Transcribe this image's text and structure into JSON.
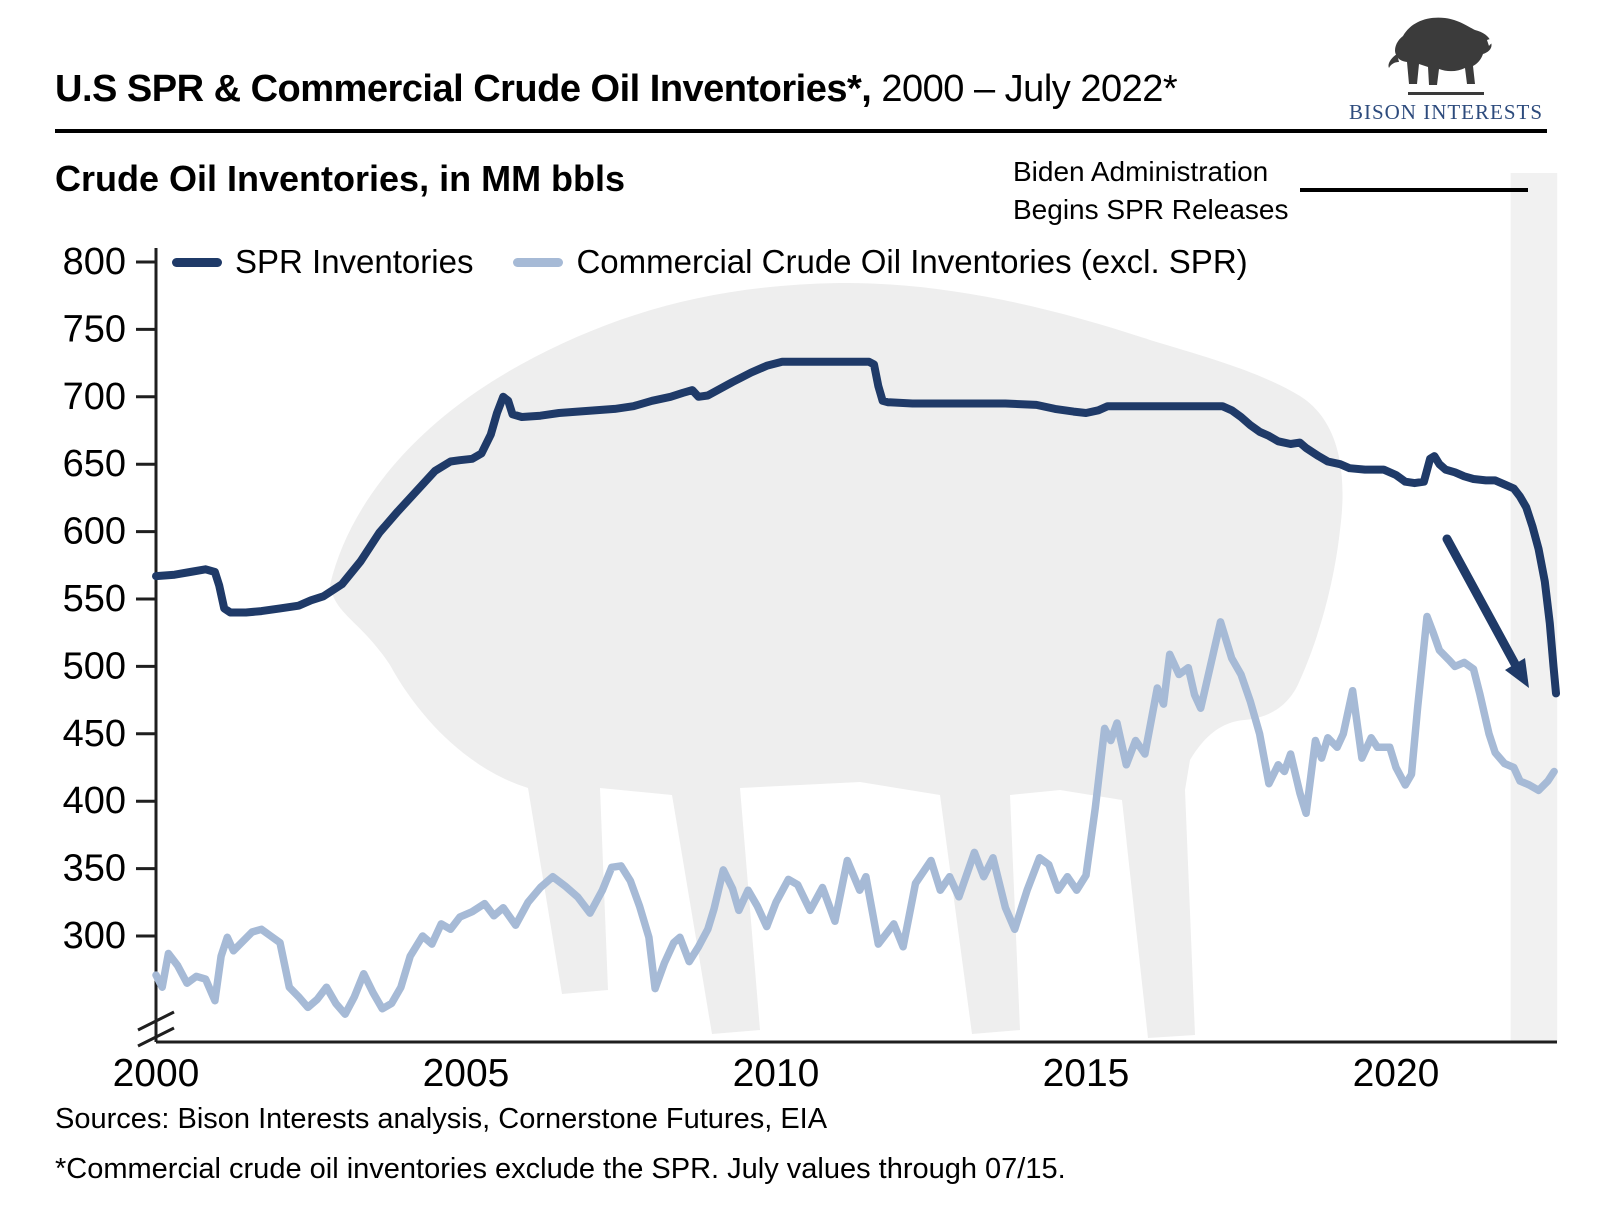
{
  "header": {
    "title_bold": "U.S SPR & Commercial Crude Oil Inventories*,",
    "title_regular": " 2000 – July 2022*"
  },
  "logo": {
    "brand": "BISON INTERESTS"
  },
  "subtitle": "Crude Oil Inventories, in MM bbls",
  "annotation": {
    "line1": "Biden Administration",
    "line2": "Begins SPR Releases"
  },
  "legend": [
    {
      "label": "SPR Inventories",
      "color": "#1f3a68"
    },
    {
      "label": "Commercial Crude Oil Inventories (excl. SPR)",
      "color": "#a6bad6"
    }
  ],
  "footer": {
    "sources": "Sources: Bison Interests analysis, Cornerstone Futures, EIA",
    "footnote": "*Commercial crude oil inventories exclude the SPR. July values through 07/15."
  },
  "colors": {
    "spr_navy": "#1f3a68",
    "commercial_blue": "#a6bad6",
    "axis": "#1f1f1f",
    "highlight_band": "#f1f1f1",
    "watermark": "#eeeeee",
    "logo_text_navy": "#2d4b7d"
  },
  "chart_data": {
    "type": "line",
    "title": "Crude Oil Inventories, in MM bbls",
    "xlabel": "",
    "ylabel": "MM bbls",
    "x_range": [
      2000,
      2022.6
    ],
    "y_ticks": [
      800,
      750,
      700,
      650,
      600,
      550,
      500,
      450,
      400,
      350,
      300
    ],
    "x_ticks": [
      2000,
      2005,
      2010,
      2015,
      2020
    ],
    "y_axis_break": true,
    "grid": false,
    "legend_position": "top-left",
    "highlight_band": {
      "label": "Biden Administration Begins SPR Releases",
      "x_start": 2021.85,
      "x_end": 2022.6
    },
    "series": [
      {
        "name": "SPR Inventories",
        "color": "#1f3a68",
        "points": [
          [
            2000.0,
            567
          ],
          [
            2000.3,
            568
          ],
          [
            2000.55,
            570
          ],
          [
            2000.8,
            572
          ],
          [
            2000.95,
            570
          ],
          [
            2001.02,
            560
          ],
          [
            2001.1,
            543
          ],
          [
            2001.2,
            540
          ],
          [
            2001.45,
            540
          ],
          [
            2001.7,
            541
          ],
          [
            2002.0,
            543
          ],
          [
            2002.3,
            545
          ],
          [
            2002.5,
            549
          ],
          [
            2002.7,
            552
          ],
          [
            2003.0,
            561
          ],
          [
            2003.3,
            578
          ],
          [
            2003.6,
            599
          ],
          [
            2003.9,
            615
          ],
          [
            2004.2,
            630
          ],
          [
            2004.5,
            645
          ],
          [
            2004.75,
            652
          ],
          [
            2004.9,
            653
          ],
          [
            2005.1,
            654
          ],
          [
            2005.25,
            658
          ],
          [
            2005.4,
            672
          ],
          [
            2005.5,
            688
          ],
          [
            2005.6,
            700
          ],
          [
            2005.68,
            697
          ],
          [
            2005.75,
            687
          ],
          [
            2005.9,
            685
          ],
          [
            2006.2,
            686
          ],
          [
            2006.5,
            688
          ],
          [
            2006.8,
            689
          ],
          [
            2007.1,
            690
          ],
          [
            2007.4,
            691
          ],
          [
            2007.7,
            693
          ],
          [
            2008.0,
            697
          ],
          [
            2008.3,
            700
          ],
          [
            2008.5,
            703
          ],
          [
            2008.65,
            705
          ],
          [
            2008.75,
            700
          ],
          [
            2008.9,
            701
          ],
          [
            2009.1,
            706
          ],
          [
            2009.3,
            711
          ],
          [
            2009.6,
            718
          ],
          [
            2009.85,
            723
          ],
          [
            2010.1,
            726
          ],
          [
            2010.5,
            726
          ],
          [
            2011.0,
            726
          ],
          [
            2011.5,
            726
          ],
          [
            2011.58,
            724
          ],
          [
            2011.65,
            708
          ],
          [
            2011.72,
            697
          ],
          [
            2011.8,
            696
          ],
          [
            2012.2,
            695
          ],
          [
            2012.7,
            695
          ],
          [
            2013.2,
            695
          ],
          [
            2013.7,
            695
          ],
          [
            2014.2,
            694
          ],
          [
            2014.5,
            691
          ],
          [
            2014.8,
            689
          ],
          [
            2015.0,
            688
          ],
          [
            2015.2,
            690
          ],
          [
            2015.35,
            693
          ],
          [
            2015.8,
            693
          ],
          [
            2016.3,
            693
          ],
          [
            2016.8,
            693
          ],
          [
            2017.2,
            693
          ],
          [
            2017.35,
            690
          ],
          [
            2017.5,
            685
          ],
          [
            2017.65,
            679
          ],
          [
            2017.8,
            674
          ],
          [
            2017.95,
            671
          ],
          [
            2018.1,
            667
          ],
          [
            2018.3,
            665
          ],
          [
            2018.45,
            666
          ],
          [
            2018.55,
            662
          ],
          [
            2018.75,
            656
          ],
          [
            2018.9,
            652
          ],
          [
            2019.1,
            650
          ],
          [
            2019.25,
            647
          ],
          [
            2019.5,
            646
          ],
          [
            2019.8,
            646
          ],
          [
            2020.0,
            642
          ],
          [
            2020.15,
            637
          ],
          [
            2020.3,
            636
          ],
          [
            2020.45,
            637
          ],
          [
            2020.55,
            654
          ],
          [
            2020.62,
            656
          ],
          [
            2020.7,
            650
          ],
          [
            2020.8,
            646
          ],
          [
            2020.95,
            644
          ],
          [
            2021.1,
            641
          ],
          [
            2021.25,
            639
          ],
          [
            2021.45,
            638
          ],
          [
            2021.6,
            638
          ],
          [
            2021.75,
            635
          ],
          [
            2021.9,
            632
          ],
          [
            2022.0,
            626
          ],
          [
            2022.1,
            618
          ],
          [
            2022.2,
            604
          ],
          [
            2022.3,
            587
          ],
          [
            2022.4,
            563
          ],
          [
            2022.48,
            532
          ],
          [
            2022.54,
            500
          ],
          [
            2022.58,
            480
          ]
        ]
      },
      {
        "name": "Commercial Crude Oil Inventories (excl. SPR)",
        "color": "#a6bad6",
        "points": [
          [
            2000.0,
            271
          ],
          [
            2000.1,
            262
          ],
          [
            2000.2,
            287
          ],
          [
            2000.35,
            278
          ],
          [
            2000.5,
            265
          ],
          [
            2000.65,
            270
          ],
          [
            2000.8,
            268
          ],
          [
            2000.95,
            252
          ],
          [
            2001.05,
            285
          ],
          [
            2001.15,
            299
          ],
          [
            2001.25,
            289
          ],
          [
            2001.4,
            296
          ],
          [
            2001.55,
            303
          ],
          [
            2001.7,
            305
          ],
          [
            2001.85,
            300
          ],
          [
            2002.0,
            295
          ],
          [
            2002.15,
            262
          ],
          [
            2002.3,
            255
          ],
          [
            2002.45,
            247
          ],
          [
            2002.6,
            253
          ],
          [
            2002.75,
            262
          ],
          [
            2002.9,
            250
          ],
          [
            2003.05,
            242
          ],
          [
            2003.2,
            255
          ],
          [
            2003.35,
            272
          ],
          [
            2003.5,
            258
          ],
          [
            2003.65,
            246
          ],
          [
            2003.8,
            250
          ],
          [
            2003.95,
            262
          ],
          [
            2004.1,
            285
          ],
          [
            2004.3,
            300
          ],
          [
            2004.45,
            294
          ],
          [
            2004.6,
            309
          ],
          [
            2004.75,
            305
          ],
          [
            2004.9,
            314
          ],
          [
            2005.1,
            318
          ],
          [
            2005.3,
            324
          ],
          [
            2005.45,
            315
          ],
          [
            2005.6,
            321
          ],
          [
            2005.8,
            308
          ],
          [
            2006.0,
            325
          ],
          [
            2006.2,
            336
          ],
          [
            2006.4,
            344
          ],
          [
            2006.6,
            337
          ],
          [
            2006.8,
            329
          ],
          [
            2007.0,
            317
          ],
          [
            2007.2,
            334
          ],
          [
            2007.35,
            351
          ],
          [
            2007.5,
            352
          ],
          [
            2007.65,
            341
          ],
          [
            2007.8,
            322
          ],
          [
            2007.95,
            299
          ],
          [
            2008.05,
            261
          ],
          [
            2008.2,
            280
          ],
          [
            2008.35,
            295
          ],
          [
            2008.45,
            299
          ],
          [
            2008.6,
            281
          ],
          [
            2008.75,
            292
          ],
          [
            2008.9,
            305
          ],
          [
            2009.0,
            320
          ],
          [
            2009.15,
            349
          ],
          [
            2009.3,
            335
          ],
          [
            2009.4,
            319
          ],
          [
            2009.55,
            334
          ],
          [
            2009.7,
            322
          ],
          [
            2009.85,
            307
          ],
          [
            2010.0,
            325
          ],
          [
            2010.2,
            342
          ],
          [
            2010.35,
            338
          ],
          [
            2010.55,
            319
          ],
          [
            2010.75,
            336
          ],
          [
            2010.95,
            311
          ],
          [
            2011.15,
            356
          ],
          [
            2011.35,
            334
          ],
          [
            2011.45,
            344
          ],
          [
            2011.65,
            294
          ],
          [
            2011.9,
            309
          ],
          [
            2012.05,
            292
          ],
          [
            2012.25,
            339
          ],
          [
            2012.5,
            356
          ],
          [
            2012.65,
            334
          ],
          [
            2012.8,
            344
          ],
          [
            2012.95,
            329
          ],
          [
            2013.2,
            362
          ],
          [
            2013.35,
            344
          ],
          [
            2013.5,
            358
          ],
          [
            2013.7,
            321
          ],
          [
            2013.85,
            305
          ],
          [
            2014.05,
            334
          ],
          [
            2014.25,
            358
          ],
          [
            2014.4,
            353
          ],
          [
            2014.55,
            334
          ],
          [
            2014.7,
            344
          ],
          [
            2014.85,
            334
          ],
          [
            2015.0,
            345
          ],
          [
            2015.15,
            395
          ],
          [
            2015.3,
            454
          ],
          [
            2015.4,
            445
          ],
          [
            2015.5,
            458
          ],
          [
            2015.65,
            427
          ],
          [
            2015.8,
            445
          ],
          [
            2015.95,
            435
          ],
          [
            2016.15,
            484
          ],
          [
            2016.25,
            472
          ],
          [
            2016.35,
            509
          ],
          [
            2016.5,
            494
          ],
          [
            2016.65,
            499
          ],
          [
            2016.75,
            479
          ],
          [
            2016.85,
            469
          ],
          [
            2017.0,
            499
          ],
          [
            2017.17,
            533
          ],
          [
            2017.35,
            506
          ],
          [
            2017.5,
            494
          ],
          [
            2017.65,
            474
          ],
          [
            2017.8,
            450
          ],
          [
            2017.95,
            413
          ],
          [
            2018.1,
            427
          ],
          [
            2018.2,
            422
          ],
          [
            2018.3,
            435
          ],
          [
            2018.45,
            406
          ],
          [
            2018.55,
            391
          ],
          [
            2018.7,
            445
          ],
          [
            2018.8,
            432
          ],
          [
            2018.9,
            447
          ],
          [
            2019.05,
            440
          ],
          [
            2019.15,
            450
          ],
          [
            2019.3,
            482
          ],
          [
            2019.45,
            432
          ],
          [
            2019.6,
            447
          ],
          [
            2019.7,
            440
          ],
          [
            2019.9,
            440
          ],
          [
            2020.0,
            425
          ],
          [
            2020.15,
            412
          ],
          [
            2020.25,
            420
          ],
          [
            2020.35,
            470
          ],
          [
            2020.5,
            537
          ],
          [
            2020.6,
            525
          ],
          [
            2020.7,
            512
          ],
          [
            2020.85,
            505
          ],
          [
            2020.95,
            500
          ],
          [
            2021.1,
            503
          ],
          [
            2021.25,
            498
          ],
          [
            2021.35,
            480
          ],
          [
            2021.5,
            450
          ],
          [
            2021.6,
            436
          ],
          [
            2021.75,
            428
          ],
          [
            2021.9,
            425
          ],
          [
            2022.0,
            415
          ],
          [
            2022.15,
            412
          ],
          [
            2022.3,
            408
          ],
          [
            2022.45,
            415
          ],
          [
            2022.55,
            422
          ]
        ]
      }
    ]
  }
}
